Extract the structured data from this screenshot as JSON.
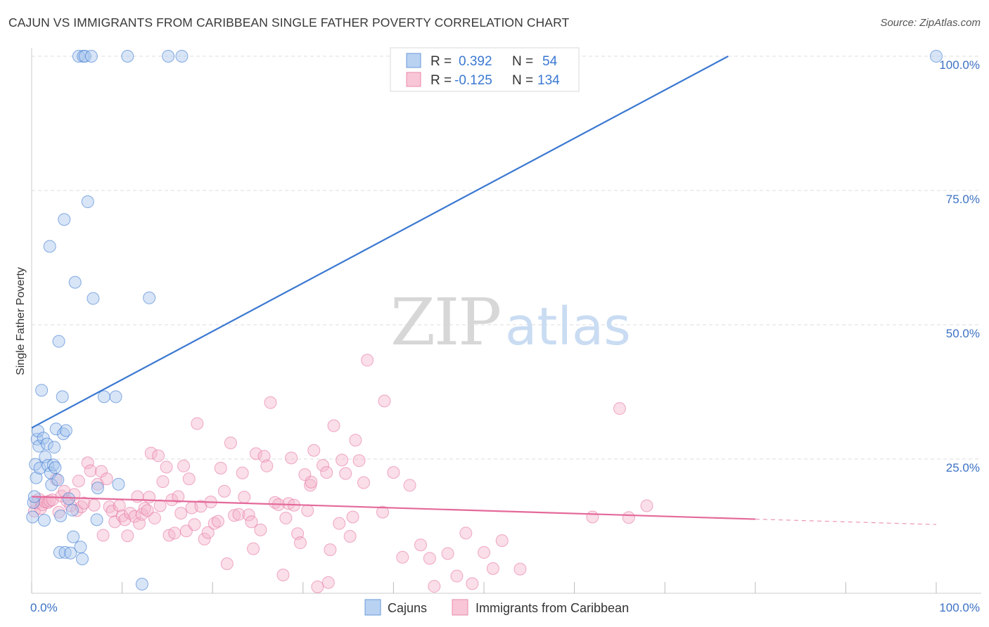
{
  "header": {
    "title": "CAJUN VS IMMIGRANTS FROM CARIBBEAN SINGLE FATHER POVERTY CORRELATION CHART",
    "source": "Source: ZipAtlas.com"
  },
  "watermark": {
    "zip": "ZIP",
    "atlas": "atlas"
  },
  "stats_legend": {
    "rows": [
      {
        "r_label": "R =",
        "r_value": "0.392",
        "n_label": "N =",
        "n_value": "54",
        "color": "#5b8fd9"
      },
      {
        "r_label": "R =",
        "r_value": "-0.125",
        "n_label": "N =",
        "n_value": "134",
        "color": "#e87a9f"
      }
    ]
  },
  "colors": {
    "blue": "#3a78d1",
    "blue_fill": "#a9c6ee",
    "pink": "#e4699a",
    "pink_fill": "#f5b5cb",
    "grid": "#dddddd",
    "tick_label": "#3d72c4"
  },
  "chart_data": {
    "type": "scatter",
    "title": "CAJUN VS IMMIGRANTS FROM CARIBBEAN SINGLE FATHER POVERTY CORRELATION CHART",
    "xlabel": "",
    "ylabel": "Single Father Poverty",
    "xlim": [
      0,
      100
    ],
    "ylim": [
      0,
      100
    ],
    "x_tick_labels": [
      "0.0%",
      "100.0%"
    ],
    "y_ticks": [
      25,
      50,
      75,
      100
    ],
    "y_tick_labels": [
      "25.0%",
      "50.0%",
      "75.0%",
      "100.0%"
    ],
    "grid": "horizontal dashed",
    "legend_placement": "top-center and bottom",
    "series": [
      {
        "name": "Cajuns",
        "color": "#3a78d1",
        "trend": {
          "x": [
            0,
            77
          ],
          "y": [
            30.8,
            100
          ]
        },
        "points": [
          [
            0.1,
            14.2
          ],
          [
            0.2,
            16.9
          ],
          [
            0.3,
            18.0
          ],
          [
            0.4,
            24.0
          ],
          [
            0.5,
            21.5
          ],
          [
            0.6,
            28.7
          ],
          [
            0.7,
            30.2
          ],
          [
            0.8,
            27.4
          ],
          [
            0.9,
            23.3
          ],
          [
            1.1,
            37.8
          ],
          [
            1.3,
            28.9
          ],
          [
            1.4,
            13.6
          ],
          [
            1.5,
            25.4
          ],
          [
            1.7,
            27.8
          ],
          [
            1.8,
            23.8
          ],
          [
            2.0,
            64.6
          ],
          [
            2.1,
            22.4
          ],
          [
            2.2,
            20.2
          ],
          [
            2.4,
            23.9
          ],
          [
            2.5,
            27.2
          ],
          [
            2.6,
            23.4
          ],
          [
            2.7,
            30.6
          ],
          [
            2.9,
            21.1
          ],
          [
            3.0,
            46.9
          ],
          [
            3.1,
            7.6
          ],
          [
            3.2,
            14.4
          ],
          [
            3.4,
            36.6
          ],
          [
            3.5,
            29.7
          ],
          [
            3.6,
            69.6
          ],
          [
            3.7,
            7.6
          ],
          [
            3.8,
            30.3
          ],
          [
            4.1,
            17.6
          ],
          [
            4.3,
            7.5
          ],
          [
            4.5,
            15.5
          ],
          [
            4.6,
            10.5
          ],
          [
            4.8,
            57.9
          ],
          [
            5.2,
            100
          ],
          [
            5.4,
            8.6
          ],
          [
            5.6,
            6.4
          ],
          [
            5.7,
            100
          ],
          [
            5.9,
            100
          ],
          [
            6.2,
            72.9
          ],
          [
            6.6,
            100
          ],
          [
            6.8,
            54.9
          ],
          [
            7.2,
            13.7
          ],
          [
            7.3,
            19.6
          ],
          [
            8.0,
            36.6
          ],
          [
            9.3,
            36.6
          ],
          [
            9.6,
            20.3
          ],
          [
            10.6,
            100
          ],
          [
            12.2,
            1.7
          ],
          [
            13.0,
            55.0
          ],
          [
            15.1,
            100
          ],
          [
            16.6,
            100
          ],
          [
            100.0,
            100
          ]
        ]
      },
      {
        "name": "Immigrants from Caribbean",
        "color": "#e4699a",
        "trend": {
          "x": [
            0,
            80
          ],
          "y": [
            18.0,
            13.8
          ]
        },
        "trend_dashed": {
          "x": [
            80,
            100
          ],
          "y": [
            13.8,
            12.8
          ]
        },
        "points": [
          [
            0.3,
            15.3
          ],
          [
            0.5,
            16.8
          ],
          [
            0.8,
            17.5
          ],
          [
            1.0,
            15.8
          ],
          [
            1.2,
            16.5
          ],
          [
            1.5,
            17.0
          ],
          [
            1.8,
            16.9
          ],
          [
            2.0,
            17.2
          ],
          [
            2.3,
            17.4
          ],
          [
            2.7,
            21.2
          ],
          [
            3.0,
            15.1
          ],
          [
            3.3,
            18.1
          ],
          [
            3.6,
            19.0
          ],
          [
            3.9,
            17.2
          ],
          [
            4.3,
            16.3
          ],
          [
            4.7,
            18.4
          ],
          [
            5.0,
            15.4
          ],
          [
            5.2,
            20.9
          ],
          [
            5.5,
            16.1
          ],
          [
            5.8,
            16.8
          ],
          [
            6.2,
            24.3
          ],
          [
            6.5,
            22.8
          ],
          [
            6.9,
            16.4
          ],
          [
            7.3,
            20.3
          ],
          [
            7.7,
            22.7
          ],
          [
            7.9,
            10.8
          ],
          [
            8.3,
            21.3
          ],
          [
            8.6,
            16.1
          ],
          [
            8.9,
            15.3
          ],
          [
            9.2,
            13.3
          ],
          [
            9.7,
            16.3
          ],
          [
            10.0,
            14.4
          ],
          [
            10.3,
            13.7
          ],
          [
            10.6,
            10.7
          ],
          [
            10.9,
            14.9
          ],
          [
            11.4,
            14.3
          ],
          [
            11.7,
            18.0
          ],
          [
            11.9,
            13.0
          ],
          [
            12.2,
            14.7
          ],
          [
            12.5,
            15.8
          ],
          [
            12.8,
            15.4
          ],
          [
            13.0,
            17.9
          ],
          [
            13.2,
            26.1
          ],
          [
            13.6,
            14.0
          ],
          [
            14.0,
            25.6
          ],
          [
            14.2,
            16.3
          ],
          [
            14.5,
            20.8
          ],
          [
            14.9,
            23.5
          ],
          [
            15.2,
            10.8
          ],
          [
            15.5,
            17.4
          ],
          [
            15.8,
            11.2
          ],
          [
            16.2,
            18.0
          ],
          [
            16.5,
            14.9
          ],
          [
            16.8,
            23.7
          ],
          [
            17.1,
            11.6
          ],
          [
            17.4,
            21.3
          ],
          [
            17.7,
            15.9
          ],
          [
            18.0,
            12.8
          ],
          [
            18.3,
            31.6
          ],
          [
            18.7,
            16.2
          ],
          [
            19.1,
            10.1
          ],
          [
            19.5,
            11.3
          ],
          [
            19.8,
            17.0
          ],
          [
            20.2,
            13.0
          ],
          [
            20.6,
            13.4
          ],
          [
            20.9,
            23.3
          ],
          [
            21.3,
            19.0
          ],
          [
            21.6,
            5.5
          ],
          [
            22.0,
            28.0
          ],
          [
            22.4,
            14.5
          ],
          [
            22.9,
            14.7
          ],
          [
            23.3,
            22.4
          ],
          [
            23.5,
            17.9
          ],
          [
            24.0,
            14.6
          ],
          [
            24.3,
            13.3
          ],
          [
            24.5,
            8.3
          ],
          [
            24.8,
            26.0
          ],
          [
            25.3,
            11.8
          ],
          [
            25.7,
            25.5
          ],
          [
            26.0,
            23.7
          ],
          [
            26.4,
            35.5
          ],
          [
            26.9,
            16.9
          ],
          [
            27.3,
            16.5
          ],
          [
            27.8,
            3.4
          ],
          [
            28.1,
            14.0
          ],
          [
            28.4,
            16.7
          ],
          [
            28.7,
            25.2
          ],
          [
            29.0,
            16.4
          ],
          [
            29.4,
            11.1
          ],
          [
            29.7,
            9.4
          ],
          [
            30.2,
            22.1
          ],
          [
            30.5,
            15.4
          ],
          [
            30.8,
            20.1
          ],
          [
            30.9,
            20.7
          ],
          [
            31.2,
            26.6
          ],
          [
            31.6,
            1.2
          ],
          [
            32.2,
            23.8
          ],
          [
            32.6,
            22.5
          ],
          [
            32.8,
            2.0
          ],
          [
            33.0,
            8.1
          ],
          [
            33.4,
            31.2
          ],
          [
            34.0,
            13.0
          ],
          [
            34.3,
            24.8
          ],
          [
            34.7,
            22.3
          ],
          [
            35.2,
            10.6
          ],
          [
            35.5,
            14.2
          ],
          [
            35.8,
            28.5
          ],
          [
            36.2,
            24.7
          ],
          [
            36.7,
            20.6
          ],
          [
            37.1,
            43.4
          ],
          [
            38.8,
            15.1
          ],
          [
            39.0,
            35.8
          ],
          [
            40.0,
            22.5
          ],
          [
            41.0,
            6.7
          ],
          [
            41.8,
            20.1
          ],
          [
            43.0,
            9.0
          ],
          [
            44.0,
            6.5
          ],
          [
            44.5,
            1.3
          ],
          [
            46.0,
            7.4
          ],
          [
            47.0,
            3.2
          ],
          [
            48.0,
            11.2
          ],
          [
            48.7,
            1.8
          ],
          [
            50.0,
            7.6
          ],
          [
            51.0,
            4.6
          ],
          [
            52.0,
            9.8
          ],
          [
            54.0,
            4.5
          ],
          [
            62.0,
            14.2
          ],
          [
            65.0,
            34.4
          ],
          [
            66.0,
            14.1
          ],
          [
            68.0,
            16.3
          ]
        ]
      }
    ]
  },
  "bottom_legend": {
    "items": [
      {
        "label": "Cajuns"
      },
      {
        "label": "Immigrants from Caribbean"
      }
    ]
  }
}
